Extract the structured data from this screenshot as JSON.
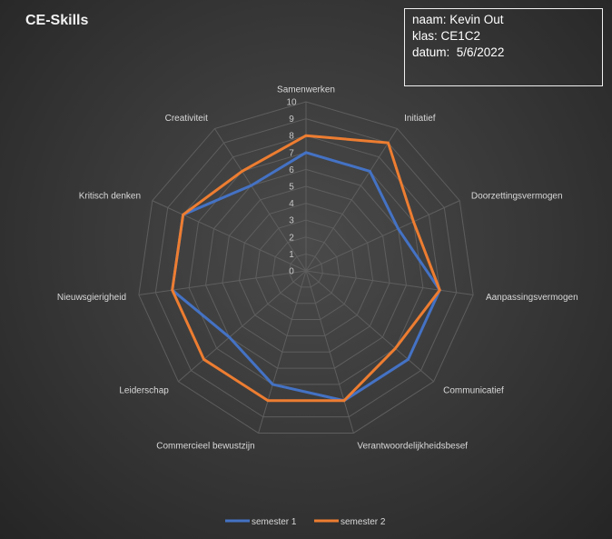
{
  "chart": {
    "title": "CE-Skills"
  },
  "info": {
    "naam": "naam: Kevin Out",
    "klas": "klas: CE1C2",
    "datum": "datum:  5/6/2022"
  },
  "chart_data": {
    "type": "radar",
    "title": "CE-Skills",
    "categories": [
      "Samenwerken",
      "Initiatief",
      "Doorzettingsvermogen",
      "Aanpassingsvermogen",
      "Communicatief",
      "Verantwoordelijkheidsbesef",
      "Commercieel bewustzijn",
      "Leiderschap",
      "Nieuwsgierigheid",
      "Kritisch denken",
      "Creativiteit"
    ],
    "rlim": [
      0,
      10
    ],
    "ticks": [
      0,
      1,
      2,
      3,
      4,
      5,
      6,
      7,
      8,
      9,
      10
    ],
    "grid": true,
    "legend": "bottom",
    "series": [
      {
        "name": "semester 1",
        "color": "#4472c4",
        "values": [
          7,
          7,
          6,
          8,
          8,
          8,
          7,
          6,
          8,
          8,
          6
        ]
      },
      {
        "name": "semester 2",
        "color": "#ed7d31",
        "values": [
          8,
          9,
          7,
          8,
          7,
          8,
          8,
          8,
          8,
          8,
          7
        ]
      }
    ]
  }
}
